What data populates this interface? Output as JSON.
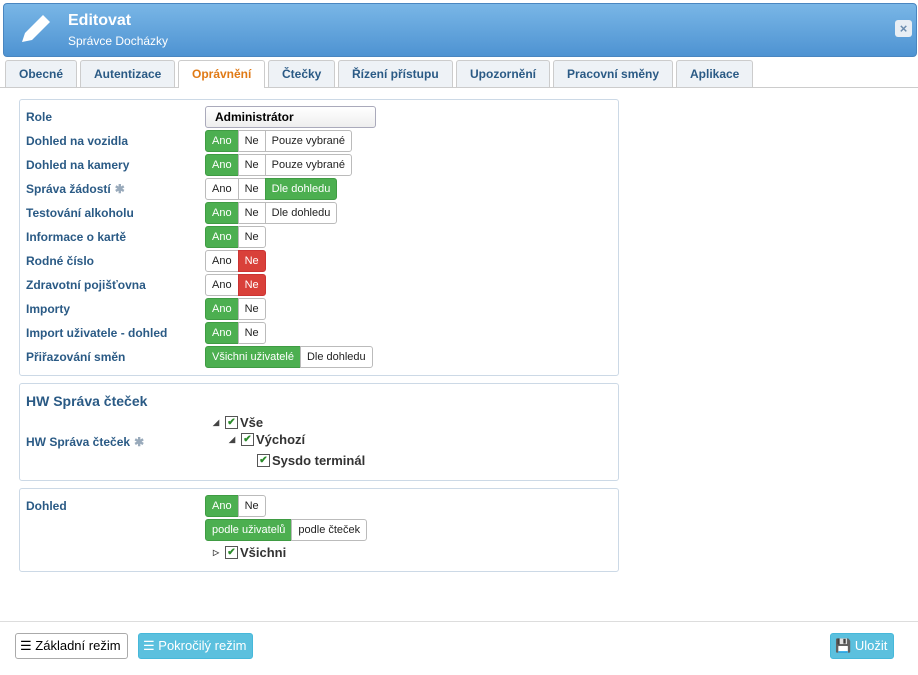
{
  "header": {
    "title": "Editovat",
    "subtitle": "Správce Docházky"
  },
  "tabs": {
    "items": [
      "Obecné",
      "Autentizace",
      "Oprávnění",
      "Čtečky",
      "Řízení přístupu",
      "Upozornění",
      "Pracovní směny",
      "Aplikace"
    ],
    "active": 2
  },
  "permissions": {
    "rows": [
      {
        "label": "Role",
        "select": "Administrátor"
      },
      {
        "label": "Dohled na vozidla",
        "options": [
          "Ano",
          "Ne",
          "Pouze vybrané"
        ],
        "selected": 0
      },
      {
        "label": "Dohled na kamery",
        "options": [
          "Ano",
          "Ne",
          "Pouze vybrané"
        ],
        "selected": 0
      },
      {
        "label": "Správa žádostí",
        "options": [
          "Ano",
          "Ne",
          "Dle dohledu"
        ],
        "selected": 2,
        "star": true
      },
      {
        "label": "Testování alkoholu",
        "options": [
          "Ano",
          "Ne",
          "Dle dohledu"
        ],
        "selected": 0
      },
      {
        "label": "Informace o kartě",
        "options": [
          "Ano",
          "Ne"
        ],
        "selected": 0
      },
      {
        "label": "Rodné číslo",
        "options": [
          "Ano",
          "Ne"
        ],
        "selected": 1
      },
      {
        "label": "Zdravotní pojišťovna",
        "options": [
          "Ano",
          "Ne"
        ],
        "selected": 1
      },
      {
        "label": "Importy",
        "options": [
          "Ano",
          "Ne"
        ],
        "selected": 0
      },
      {
        "label": "Import uživatele - dohled",
        "options": [
          "Ano",
          "Ne"
        ],
        "selected": 0
      },
      {
        "label": "Přiřazování směn",
        "options": [
          "Všichni uživatelé",
          "Dle dohledu"
        ],
        "selected": 0
      }
    ]
  },
  "hw": {
    "title": "HW Správa čteček",
    "label": "HW Správa čteček",
    "tree": [
      {
        "label": "Vše",
        "level": 0,
        "expanded": true
      },
      {
        "label": "Výchozí",
        "level": 1,
        "expanded": true
      },
      {
        "label": "Sysdo terminál",
        "level": 2
      }
    ]
  },
  "dohled": {
    "label": "Dohled",
    "options": [
      "Ano",
      "Ne"
    ],
    "selected": 0,
    "mode": {
      "options": [
        "podle uživatelů",
        "podle čteček"
      ],
      "selected": 0
    },
    "tree": [
      {
        "label": "Všichni",
        "level": 0,
        "expanded": false
      }
    ]
  },
  "footer": {
    "basic": "Základní režim",
    "advanced": "Pokročilý režim",
    "save": "Uložit"
  }
}
